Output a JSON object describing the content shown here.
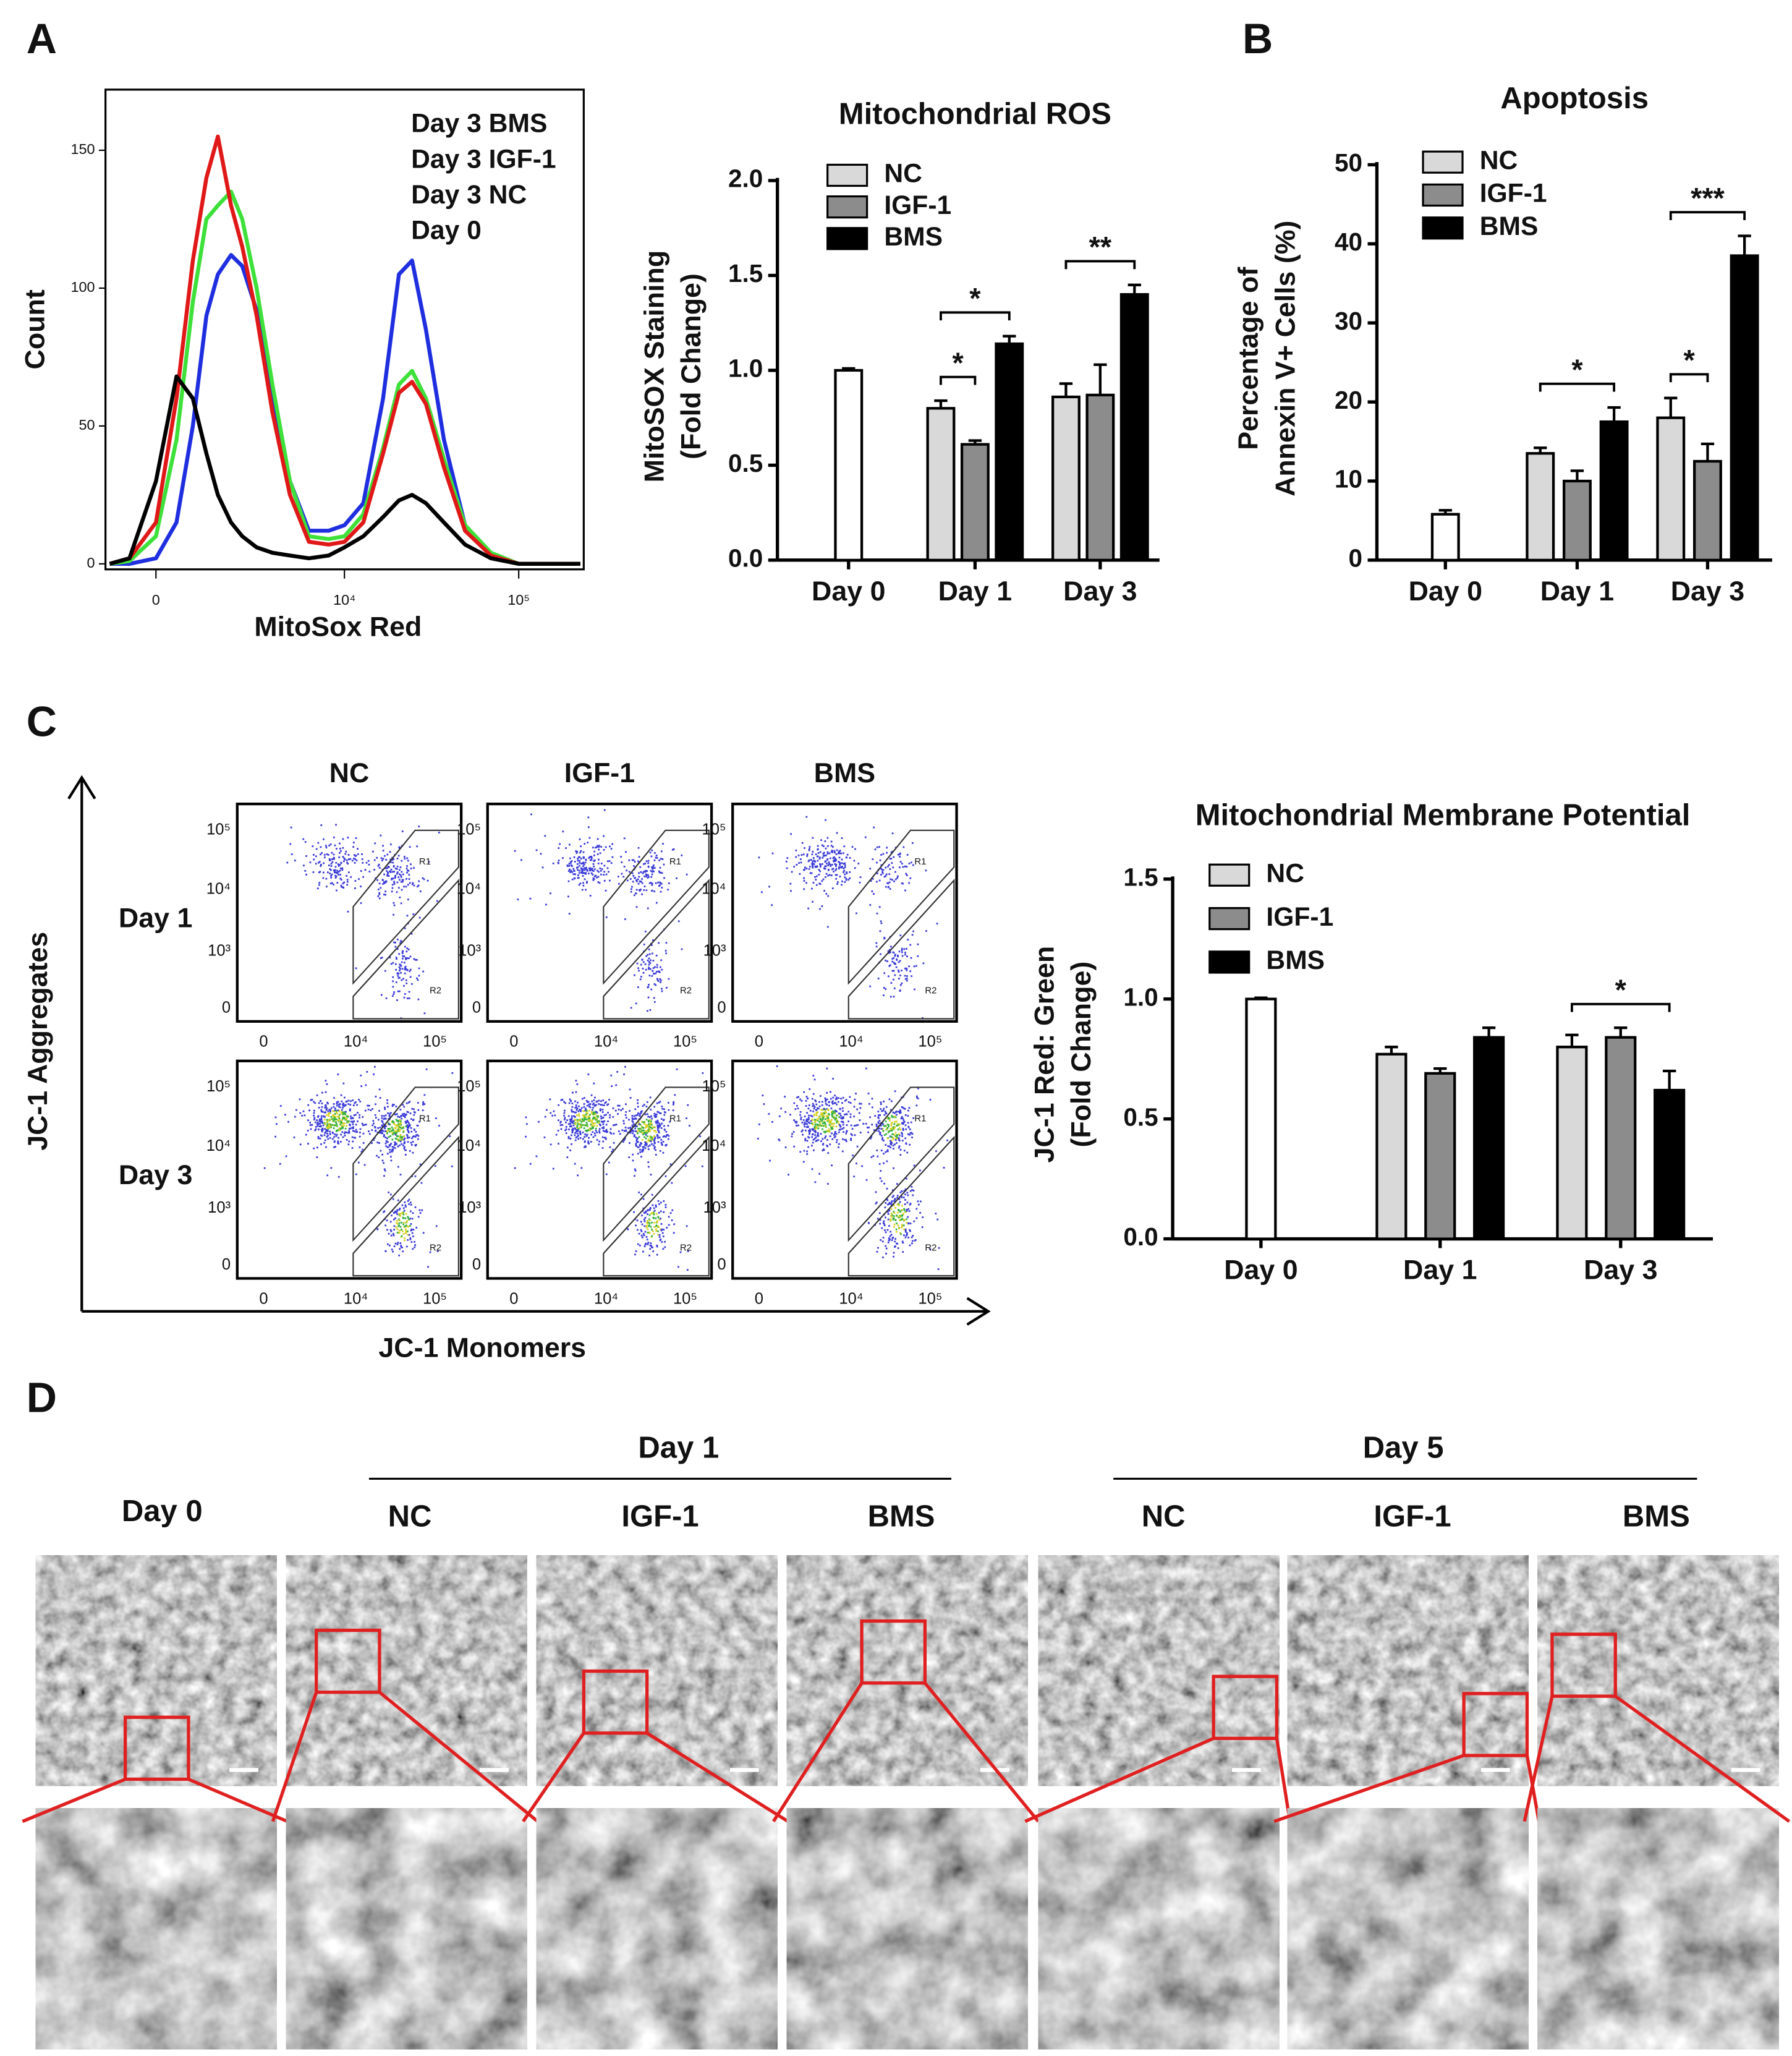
{
  "panels": [
    "A",
    "B",
    "C",
    "D"
  ],
  "chart_data": [
    {
      "type": "line",
      "xlabel": "MitoSox Red",
      "ylabel": "Count",
      "xscale": "symlog",
      "symlog_width": 1000,
      "xlim": [
        -900,
        230000
      ],
      "xticks": [
        {
          "value": 0,
          "label": "0"
        },
        {
          "value": 10000,
          "label": "10⁴"
        },
        {
          "value": 100000,
          "label": "10⁵"
        }
      ],
      "ylim": [
        -2,
        172
      ],
      "yticks": [
        0,
        50,
        100,
        150
      ],
      "x": [
        -800,
        -400,
        0,
        300,
        600,
        900,
        1200,
        1600,
        2000,
        2600,
        3400,
        4500,
        6000,
        8000,
        10000,
        13000,
        17000,
        21000,
        25000,
        30000,
        38000,
        50000,
        70000,
        100000,
        150000,
        220000
      ],
      "series": [
        {
          "name": "Day 3 BMS",
          "color": "#1f2fe0",
          "values": [
            0,
            0,
            2,
            15,
            50,
            90,
            105,
            112,
            108,
            92,
            62,
            30,
            12,
            12,
            14,
            22,
            60,
            105,
            110,
            85,
            45,
            14,
            3,
            0,
            0,
            0
          ]
        },
        {
          "name": "Day 3 IGF-1",
          "color": "#3ee03a",
          "values": [
            0,
            1,
            10,
            45,
            95,
            125,
            130,
            135,
            125,
            100,
            65,
            30,
            10,
            9,
            10,
            18,
            42,
            65,
            70,
            60,
            38,
            14,
            4,
            0,
            0,
            0
          ]
        },
        {
          "name": "Day 3 NC",
          "color": "#e01818",
          "values": [
            0,
            2,
            15,
            60,
            110,
            140,
            155,
            130,
            115,
            90,
            55,
            25,
            8,
            7,
            8,
            15,
            40,
            62,
            66,
            58,
            35,
            12,
            3,
            0,
            0,
            0
          ]
        },
        {
          "name": "Day 0",
          "color": "#000000",
          "values": [
            0,
            2,
            30,
            68,
            60,
            40,
            25,
            15,
            10,
            6,
            4,
            3,
            2,
            3,
            6,
            10,
            17,
            23,
            25,
            22,
            15,
            7,
            2,
            0,
            0,
            0
          ]
        }
      ]
    },
    {
      "type": "bar",
      "title": "Mitochondrial ROS",
      "ylabel": [
        "MitoSOX Staining",
        "(Fold Change)"
      ],
      "categories": [
        "Day 0",
        "Day 1",
        "Day 3"
      ],
      "ylim": [
        0,
        2.0
      ],
      "yticks": [
        {
          "value": 0,
          "label": "0.0"
        },
        {
          "value": 0.5,
          "label": "0.5"
        },
        {
          "value": 1.0,
          "label": "1.0"
        },
        {
          "value": 1.5,
          "label": "1.5"
        },
        {
          "value": 2.0,
          "label": "2.0"
        }
      ],
      "control": {
        "color": "#ffffff",
        "values": [
          1.0,
          null,
          null
        ],
        "errors": [
          0.01,
          null,
          null
        ]
      },
      "series": [
        {
          "name": "NC",
          "color": "#d9d9d9",
          "values": [
            null,
            0.8,
            0.86
          ],
          "errors": [
            null,
            0.04,
            0.07
          ]
        },
        {
          "name": "IGF-1",
          "color": "#8c8c8c",
          "values": [
            null,
            0.61,
            0.87
          ],
          "errors": [
            null,
            0.02,
            0.16
          ]
        },
        {
          "name": "BMS",
          "color": "#000000",
          "values": [
            null,
            1.14,
            1.4
          ],
          "errors": [
            null,
            0.04,
            0.05
          ]
        }
      ],
      "significance": [
        {
          "category": 1,
          "from": 0,
          "to": 1,
          "label": "*"
        },
        {
          "category": 1,
          "from": 0,
          "to": 2,
          "label": "*"
        },
        {
          "category": 2,
          "from": 0,
          "to": 2,
          "label": "**"
        }
      ]
    },
    {
      "type": "bar",
      "title": "Apoptosis",
      "ylabel": [
        "Percentage of",
        "Annexin V+ Cells (%)"
      ],
      "categories": [
        "Day 0",
        "Day 1",
        "Day 3"
      ],
      "ylim": [
        0,
        50
      ],
      "yticks": [
        0,
        10,
        20,
        30,
        40,
        50
      ],
      "control": {
        "color": "#ffffff",
        "values": [
          5.8,
          null,
          null
        ],
        "errors": [
          0.5,
          null,
          null
        ]
      },
      "series": [
        {
          "name": "NC",
          "color": "#d9d9d9",
          "values": [
            null,
            13.5,
            18
          ],
          "errors": [
            null,
            0.7,
            2.5
          ]
        },
        {
          "name": "IGF-1",
          "color": "#8c8c8c",
          "values": [
            null,
            10,
            12.5
          ],
          "errors": [
            null,
            1.3,
            2.2
          ]
        },
        {
          "name": "BMS",
          "color": "#000000",
          "values": [
            null,
            17.5,
            38.5
          ],
          "errors": [
            null,
            1.8,
            2.5
          ]
        }
      ],
      "significance": [
        {
          "category": 1,
          "from": 0,
          "to": 2,
          "label": "*"
        },
        {
          "category": 2,
          "from": 0,
          "to": 1,
          "label": "*"
        },
        {
          "category": 2,
          "from": 0,
          "to": 2,
          "label": "***"
        }
      ]
    },
    {
      "type": "bar",
      "title": "Mitochondrial Membrane Potential",
      "ylabel": [
        "JC-1 Red: Green",
        "(Fold Change)"
      ],
      "categories": [
        "Day 0",
        "Day 1",
        "Day 3"
      ],
      "ylim": [
        0,
        1.5
      ],
      "yticks": [
        {
          "value": 0,
          "label": "0.0"
        },
        {
          "value": 0.5,
          "label": "0.5"
        },
        {
          "value": 1.0,
          "label": "1.0"
        },
        {
          "value": 1.5,
          "label": "1.5"
        }
      ],
      "control": {
        "color": "#ffffff",
        "values": [
          1.0,
          null,
          null
        ],
        "errors": [
          0.005,
          null,
          null
        ]
      },
      "series": [
        {
          "name": "NC",
          "color": "#d9d9d9",
          "values": [
            null,
            0.77,
            0.8
          ],
          "errors": [
            null,
            0.03,
            0.05
          ]
        },
        {
          "name": "IGF-1",
          "color": "#8c8c8c",
          "values": [
            null,
            0.69,
            0.84
          ],
          "errors": [
            null,
            0.02,
            0.04
          ]
        },
        {
          "name": "BMS",
          "color": "#000000",
          "values": [
            null,
            0.84,
            0.62
          ],
          "errors": [
            null,
            0.04,
            0.08
          ]
        }
      ],
      "significance": [
        {
          "category": 2,
          "from": 0,
          "to": 2,
          "label": "*"
        }
      ]
    }
  ],
  "panel_c": {
    "columns": [
      "NC",
      "IGF-1",
      "BMS"
    ],
    "rows": [
      "Day 1",
      "Day 3"
    ],
    "x_label": "JC-1 Monomers",
    "y_label": "JC-1 Aggregates",
    "x_tick_labels": [
      "0",
      "10⁴",
      "10⁵"
    ],
    "y_tick_labels": [
      "10⁵",
      "10⁴",
      "10³",
      "0"
    ],
    "gate_labels": [
      "R1",
      "R2"
    ]
  },
  "panel_d": {
    "day0": "Day 0",
    "groups": [
      {
        "label": "Day 1",
        "columns": [
          "NC",
          "IGF-1",
          "BMS"
        ]
      },
      {
        "label": "Day 5",
        "columns": [
          "NC",
          "IGF-1",
          "BMS"
        ]
      }
    ]
  }
}
